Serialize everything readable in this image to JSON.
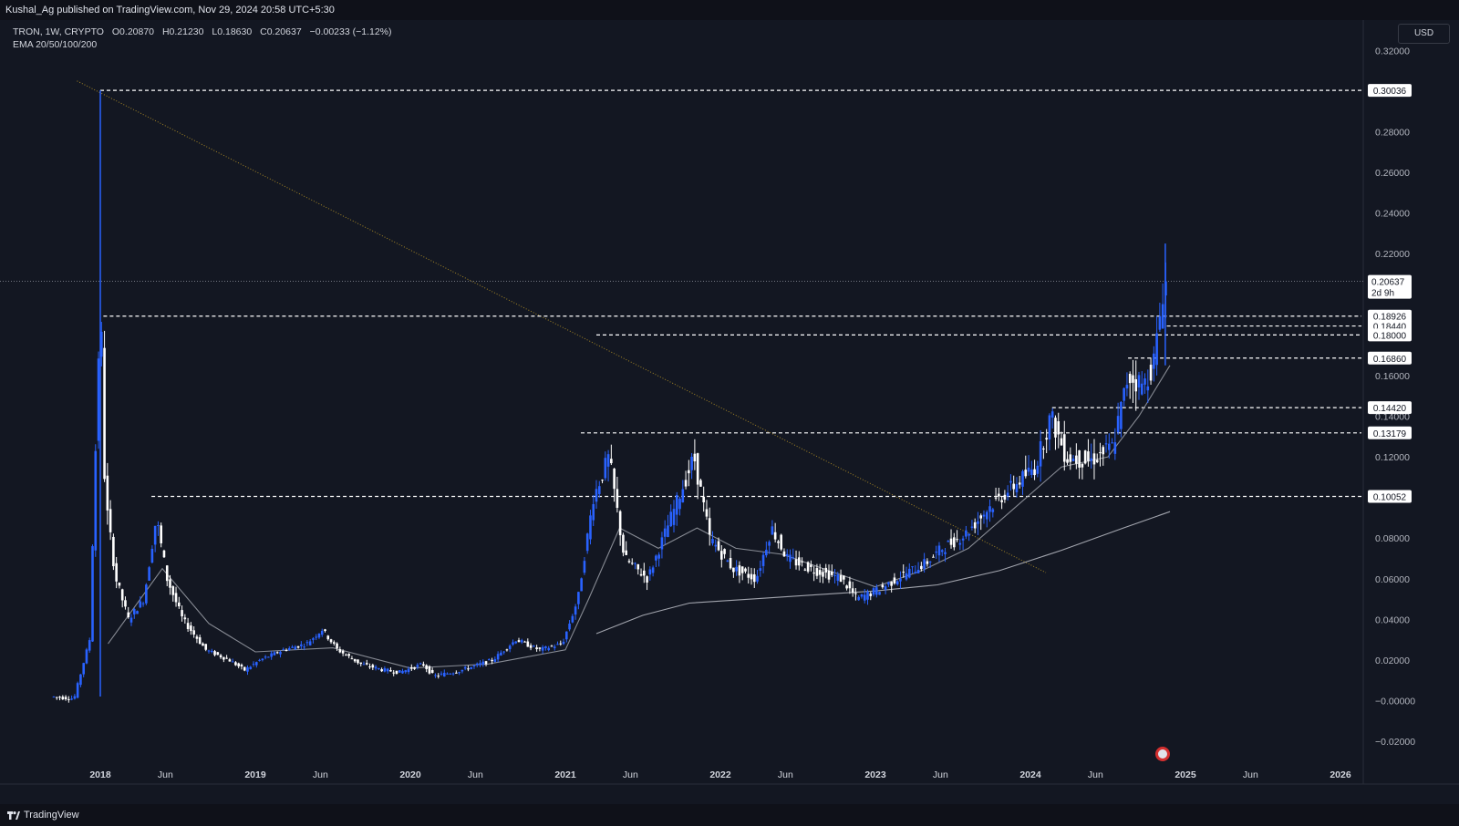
{
  "header": {
    "publish_line": "Kushal_Ag published on TradingView.com, Nov 29, 2024 20:58 UTC+5:30"
  },
  "legend": {
    "symbol_line": [
      "TRON, 1W, CRYPTO",
      "O0.20870",
      "H0.21230",
      "L0.18630",
      "C0.20637",
      "−0.00233 (−1.12%)"
    ],
    "indicator_line": "EMA 20/50/100/200"
  },
  "currency_button": "USD",
  "footer": {
    "brand": "TradingView"
  },
  "colors": {
    "background": "#131722",
    "candle_up": "#2962ff",
    "candle_down": "#ffffff",
    "ema_fast": "#9598a1",
    "ema_slow": "#b2b5be",
    "trendline": "#c9a227",
    "level_line": "#ffffff"
  },
  "chart_data": {
    "type": "candlestick",
    "ylim": [
      -0.02,
      0.32
    ],
    "y_ticks": [
      "0.32000",
      "0.28000",
      "0.26000",
      "0.24000",
      "0.22000",
      "0.16000",
      "0.14000",
      "0.12000",
      "0.08000",
      "0.06000",
      "0.04000",
      "0.02000",
      "−0.00000",
      "−0.02000"
    ],
    "x_ticks": [
      "2018",
      "Jun",
      "2019",
      "Jun",
      "2020",
      "Jun",
      "2021",
      "Jun",
      "2022",
      "Jun",
      "2023",
      "Jun",
      "2024",
      "Jun",
      "2025",
      "Jun",
      "2026"
    ],
    "x_tick_years": [
      2018.0,
      2018.42,
      2019.0,
      2019.42,
      2020.0,
      2020.42,
      2021.0,
      2021.42,
      2022.0,
      2022.42,
      2023.0,
      2023.42,
      2024.0,
      2024.42,
      2025.0,
      2025.42,
      2026.0
    ],
    "current_price": {
      "value": 0.20637,
      "label": "0.20637",
      "countdown": "2d 9h"
    },
    "price_path": [
      [
        2017.7,
        0.002
      ],
      [
        2017.85,
        0.001
      ],
      [
        2017.95,
        0.03
      ],
      [
        2018.02,
        0.2
      ],
      [
        2018.05,
        0.1
      ],
      [
        2018.12,
        0.06
      ],
      [
        2018.2,
        0.04
      ],
      [
        2018.3,
        0.05
      ],
      [
        2018.38,
        0.09
      ],
      [
        2018.45,
        0.06
      ],
      [
        2018.55,
        0.04
      ],
      [
        2018.7,
        0.025
      ],
      [
        2018.85,
        0.02
      ],
      [
        2018.95,
        0.015
      ],
      [
        2019.05,
        0.02
      ],
      [
        2019.2,
        0.025
      ],
      [
        2019.35,
        0.028
      ],
      [
        2019.45,
        0.035
      ],
      [
        2019.55,
        0.025
      ],
      [
        2019.7,
        0.018
      ],
      [
        2019.85,
        0.015
      ],
      [
        2019.95,
        0.014
      ],
      [
        2020.1,
        0.018
      ],
      [
        2020.17,
        0.012
      ],
      [
        2020.35,
        0.015
      ],
      [
        2020.55,
        0.02
      ],
      [
        2020.7,
        0.03
      ],
      [
        2020.85,
        0.025
      ],
      [
        2021.0,
        0.028
      ],
      [
        2021.1,
        0.05
      ],
      [
        2021.2,
        0.1
      ],
      [
        2021.3,
        0.12
      ],
      [
        2021.4,
        0.07
      ],
      [
        2021.55,
        0.06
      ],
      [
        2021.7,
        0.09
      ],
      [
        2021.85,
        0.12
      ],
      [
        2021.95,
        0.08
      ],
      [
        2022.1,
        0.065
      ],
      [
        2022.25,
        0.06
      ],
      [
        2022.35,
        0.085
      ],
      [
        2022.45,
        0.07
      ],
      [
        2022.6,
        0.065
      ],
      [
        2022.8,
        0.06
      ],
      [
        2022.9,
        0.05
      ],
      [
        2023.05,
        0.055
      ],
      [
        2023.2,
        0.062
      ],
      [
        2023.35,
        0.068
      ],
      [
        2023.45,
        0.075
      ],
      [
        2023.6,
        0.082
      ],
      [
        2023.75,
        0.095
      ],
      [
        2023.9,
        0.105
      ],
      [
        2024.05,
        0.115
      ],
      [
        2024.15,
        0.14
      ],
      [
        2024.25,
        0.12
      ],
      [
        2024.4,
        0.118
      ],
      [
        2024.55,
        0.125
      ],
      [
        2024.65,
        0.16
      ],
      [
        2024.75,
        0.155
      ],
      [
        2024.82,
        0.168
      ],
      [
        2024.88,
        0.206
      ]
    ],
    "ema_fast": [
      [
        2018.05,
        0.028
      ],
      [
        2018.4,
        0.065
      ],
      [
        2018.7,
        0.038
      ],
      [
        2019.0,
        0.024
      ],
      [
        2019.5,
        0.026
      ],
      [
        2020.0,
        0.016
      ],
      [
        2020.5,
        0.018
      ],
      [
        2021.0,
        0.025
      ],
      [
        2021.15,
        0.05
      ],
      [
        2021.35,
        0.085
      ],
      [
        2021.6,
        0.075
      ],
      [
        2021.85,
        0.085
      ],
      [
        2022.1,
        0.075
      ],
      [
        2022.4,
        0.072
      ],
      [
        2022.7,
        0.064
      ],
      [
        2023.0,
        0.056
      ],
      [
        2023.3,
        0.064
      ],
      [
        2023.6,
        0.075
      ],
      [
        2023.9,
        0.095
      ],
      [
        2024.2,
        0.115
      ],
      [
        2024.5,
        0.12
      ],
      [
        2024.7,
        0.14
      ],
      [
        2024.9,
        0.165
      ]
    ],
    "ema_slow": [
      [
        2021.2,
        0.033
      ],
      [
        2021.5,
        0.042
      ],
      [
        2021.8,
        0.048
      ],
      [
        2022.2,
        0.05
      ],
      [
        2022.6,
        0.052
      ],
      [
        2023.0,
        0.054
      ],
      [
        2023.4,
        0.057
      ],
      [
        2023.8,
        0.064
      ],
      [
        2024.2,
        0.074
      ],
      [
        2024.6,
        0.085
      ],
      [
        2024.9,
        0.093
      ]
    ],
    "trendline": {
      "from": [
        2017.85,
        0.305
      ],
      "to": [
        2024.1,
        0.063
      ]
    },
    "levels": [
      {
        "price": 0.30036,
        "label": "0.30036",
        "from": 2018.0
      },
      {
        "price": 0.18926,
        "label": "0.18926",
        "from": 2018.02
      },
      {
        "price": 0.1844,
        "label": "0.18440",
        "from": 2024.88
      },
      {
        "price": 0.18,
        "label": "0.18000",
        "from": 2021.2
      },
      {
        "price": 0.1686,
        "label": "0.16860",
        "from": 2024.63
      },
      {
        "price": 0.1442,
        "label": "0.14420",
        "from": 2024.14
      },
      {
        "price": 0.13179,
        "label": "0.13179",
        "from": 2021.1
      },
      {
        "price": 0.10052,
        "label": "0.10052",
        "from": 2018.33
      }
    ]
  }
}
